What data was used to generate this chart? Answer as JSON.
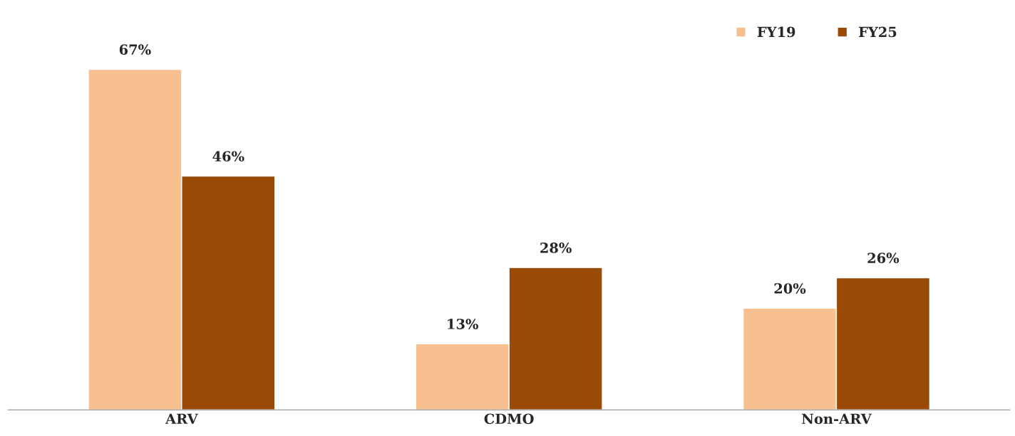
{
  "chart_data": {
    "type": "bar",
    "categories": [
      "ARV",
      "CDMO",
      "Non-ARV"
    ],
    "series": [
      {
        "name": "FY19",
        "color": "#f9c08f",
        "values": [
          67,
          13,
          20
        ],
        "value_labels": [
          "67%",
          "13%",
          "20%"
        ]
      },
      {
        "name": "FY25",
        "color": "#994a06",
        "values": [
          46,
          28,
          26
        ],
        "value_labels": [
          "46%",
          "28%",
          "26%"
        ]
      }
    ],
    "legend": "top right",
    "grid": false
  }
}
